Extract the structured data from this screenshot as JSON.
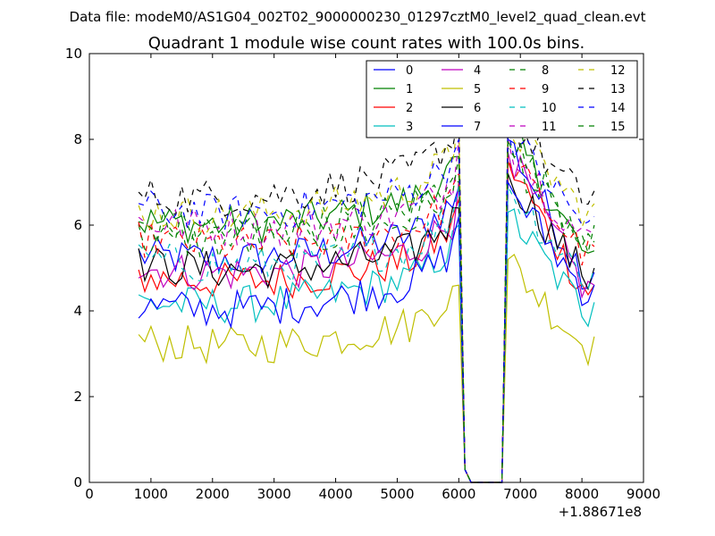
{
  "suptitle": "Data file: modeM0/AS1G04_002T02_9000000230_01297cztM0_level2_quad_clean.evt",
  "chart_data": {
    "type": "line",
    "title": "Quadrant 1 module wise count rates with 100.0s bins.",
    "xlabel": "",
    "ylabel": "",
    "xlim": [
      0,
      9000
    ],
    "ylim": [
      0,
      10
    ],
    "x_offset_label": "+1.88671e8",
    "xticks": [
      "0",
      "1000",
      "2000",
      "3000",
      "4000",
      "5000",
      "6000",
      "7000",
      "8000",
      "9000"
    ],
    "yticks": [
      "0",
      "2",
      "4",
      "6",
      "8",
      "10"
    ],
    "x": {
      "start": 800,
      "step": 100,
      "count": 75
    },
    "gap": {
      "start_index": 53,
      "end_index": 60,
      "description": "count rate drops to 0 between ~6100 and ~6800"
    },
    "series": [
      {
        "name": "0",
        "color": "#0000ff",
        "dash": "solid",
        "mean": 5.9,
        "before_gap": 6.9,
        "after_gap": 8.0,
        "end": 4.9,
        "trend": -0.25
      },
      {
        "name": "1",
        "color": "#008000",
        "dash": "solid",
        "mean": 6.7,
        "before_gap": 7.6,
        "after_gap": 8.3,
        "end": 5.4,
        "trend": -0.25
      },
      {
        "name": "2",
        "color": "#ff0000",
        "dash": "solid",
        "mean": 5.3,
        "before_gap": 6.6,
        "after_gap": 7.5,
        "end": 4.6,
        "trend": -0.2
      },
      {
        "name": "3",
        "color": "#00bfbf",
        "dash": "solid",
        "mean": 4.9,
        "before_gap": 6.0,
        "after_gap": 6.3,
        "end": 4.2,
        "trend": -0.3
      },
      {
        "name": "4",
        "color": "#bf00bf",
        "dash": "solid",
        "mean": 5.5,
        "before_gap": 7.0,
        "after_gap": 7.7,
        "end": 4.6,
        "trend": -0.2
      },
      {
        "name": "5",
        "color": "#bfbf00",
        "dash": "solid",
        "mean": 3.8,
        "before_gap": 4.6,
        "after_gap": 5.2,
        "end": 3.4,
        "trend": -0.2
      },
      {
        "name": "6",
        "color": "#000000",
        "dash": "solid",
        "mean": 5.5,
        "before_gap": 6.4,
        "after_gap": 7.2,
        "end": 5.0,
        "trend": -0.15
      },
      {
        "name": "7",
        "color": "#0000ff",
        "dash": "solid",
        "mean": 4.8,
        "before_gap": 6.2,
        "after_gap": 7.0,
        "end": 4.6,
        "trend": -0.3
      },
      {
        "name": "8",
        "color": "#008000",
        "dash": "dashed",
        "mean": 6.2,
        "before_gap": 7.0,
        "after_gap": 7.8,
        "end": 5.6,
        "trend": -0.2
      },
      {
        "name": "9",
        "color": "#ff0000",
        "dash": "dashed",
        "mean": 6.0,
        "before_gap": 7.2,
        "after_gap": 7.6,
        "end": 5.5,
        "trend": -0.1
      },
      {
        "name": "10",
        "color": "#00bfbf",
        "dash": "dashed",
        "mean": 5.6,
        "before_gap": 6.9,
        "after_gap": 6.9,
        "end": 5.0,
        "trend": -0.15
      },
      {
        "name": "11",
        "color": "#bf00bf",
        "dash": "dashed",
        "mean": 6.4,
        "before_gap": 8.0,
        "after_gap": 8.0,
        "end": 5.8,
        "trend": -0.1
      },
      {
        "name": "12",
        "color": "#bfbf00",
        "dash": "dashed",
        "mean": 7.0,
        "before_gap": 8.6,
        "after_gap": 8.4,
        "end": 6.5,
        "trend": -0.3
      },
      {
        "name": "13",
        "color": "#000000",
        "dash": "dashed",
        "mean": 7.4,
        "before_gap": 8.6,
        "after_gap": 8.5,
        "end": 6.8,
        "trend": -0.3
      },
      {
        "name": "14",
        "color": "#0000ff",
        "dash": "dashed",
        "mean": 6.9,
        "before_gap": 8.0,
        "after_gap": 8.2,
        "end": 6.2,
        "trend": -0.2
      },
      {
        "name": "15",
        "color": "#008000",
        "dash": "dashed",
        "mean": 6.5,
        "before_gap": 7.6,
        "after_gap": 8.0,
        "end": 6.0,
        "trend": -0.2
      }
    ],
    "legend": {
      "placement": "top-right",
      "columns": 4
    }
  }
}
